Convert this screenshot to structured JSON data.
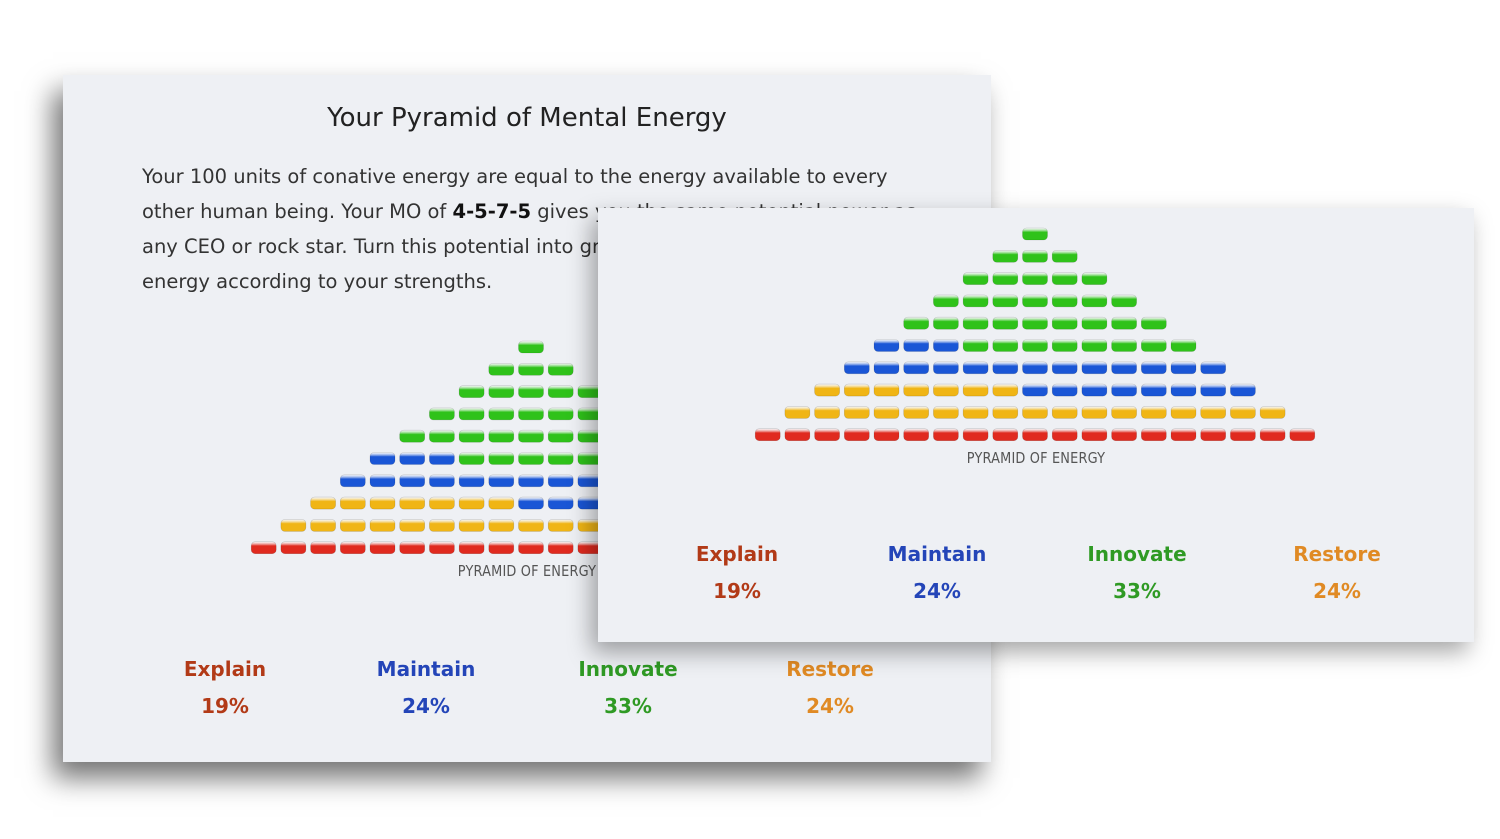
{
  "colors": {
    "explain": "#e02a1f",
    "maintain": "#1a56d6",
    "innovate": "#2fc21a",
    "restore": "#f0b515",
    "explain_text": "#b23a17",
    "maintain_text": "#2445b8",
    "innovate_text": "#2f9a24",
    "restore_text": "#e08a24"
  },
  "back_card": {
    "title": "Your Pyramid of Mental Energy",
    "intro": {
      "part1": "Your 100 units of conative energy are equal to the energy available to every other human being. Your MO of ",
      "mo": "4-5-7-5",
      "part2": " gives you the same potential power as any CEO or rock star. Turn this potential into great results by investing your energy according to your strengths."
    }
  },
  "chart_data": [
    {
      "type": "pyramid",
      "title": "",
      "caption": "PYRAMID OF ENERGY",
      "units_total": 100,
      "rows": 10,
      "series": [
        {
          "name": "Explain",
          "value": 19,
          "label": "19%"
        },
        {
          "name": "Restore",
          "value": 24,
          "label": "24%"
        },
        {
          "name": "Maintain",
          "value": 24,
          "label": "24%"
        },
        {
          "name": "Innovate",
          "value": 33,
          "label": "33%"
        }
      ]
    },
    {
      "type": "pyramid",
      "title": "",
      "caption": "PYRAMID OF ENERGY",
      "units_total": 100,
      "rows": 10,
      "series": [
        {
          "name": "Explain",
          "value": 19,
          "label": "19%"
        },
        {
          "name": "Restore",
          "value": 24,
          "label": "24%"
        },
        {
          "name": "Maintain",
          "value": 24,
          "label": "24%"
        },
        {
          "name": "Innovate",
          "value": 33,
          "label": "33%"
        }
      ]
    }
  ]
}
